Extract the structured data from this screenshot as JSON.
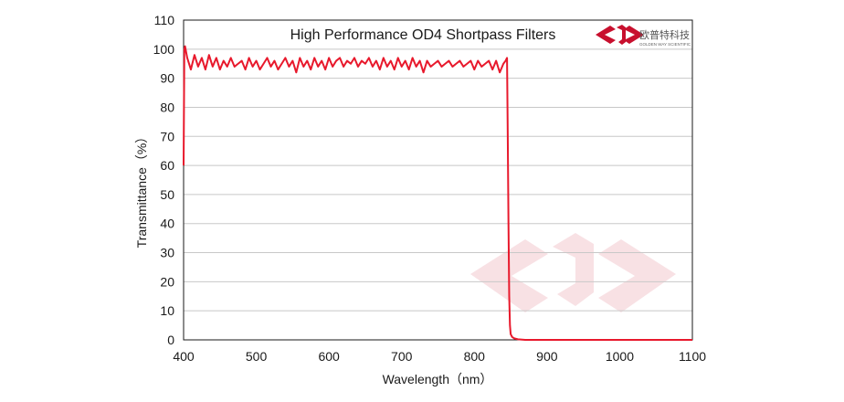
{
  "chart_data": {
    "type": "line",
    "title": "High Performance OD4 Shortpass  Filters",
    "xlabel": "Wavelength（nm）",
    "ylabel": "Transmittance（%）",
    "xlim": [
      400,
      1100
    ],
    "ylim": [
      0,
      110
    ],
    "x_ticks": [
      400,
      500,
      600,
      700,
      800,
      900,
      1000,
      1100
    ],
    "y_ticks": [
      0,
      10,
      20,
      30,
      40,
      50,
      60,
      70,
      80,
      90,
      100,
      110
    ],
    "grid": "horizontal",
    "series": [
      {
        "color": "#e8192c",
        "x": [
          400,
          401,
          402,
          405,
          410,
          415,
          420,
          425,
          430,
          435,
          440,
          445,
          450,
          455,
          460,
          465,
          470,
          475,
          480,
          485,
          490,
          495,
          500,
          505,
          510,
          515,
          520,
          525,
          530,
          535,
          540,
          545,
          550,
          555,
          560,
          565,
          570,
          575,
          580,
          585,
          590,
          595,
          600,
          605,
          610,
          615,
          620,
          625,
          630,
          635,
          640,
          645,
          650,
          655,
          660,
          665,
          670,
          675,
          680,
          685,
          690,
          695,
          700,
          705,
          710,
          715,
          720,
          725,
          730,
          735,
          740,
          745,
          750,
          755,
          760,
          765,
          770,
          775,
          780,
          785,
          790,
          795,
          800,
          805,
          810,
          815,
          820,
          825,
          830,
          835,
          840,
          843,
          845,
          846,
          847,
          848,
          849,
          850,
          852,
          855,
          860,
          870,
          900,
          1000,
          1100
        ],
        "y": [
          60,
          100,
          101,
          97,
          93,
          98,
          94,
          97,
          93,
          98,
          94,
          97,
          93,
          96,
          94,
          97,
          94,
          95,
          96,
          93,
          97,
          94,
          96,
          93,
          95,
          97,
          94,
          96,
          93,
          95,
          97,
          94,
          96,
          92,
          97,
          94,
          96,
          93,
          97,
          94,
          96,
          93,
          97,
          94,
          96,
          97,
          94,
          96,
          95,
          97,
          94,
          96,
          95,
          97,
          94,
          96,
          93,
          97,
          94,
          96,
          93,
          97,
          94,
          96,
          93,
          97,
          94,
          96,
          92,
          96,
          94,
          95,
          96,
          94,
          95,
          96,
          94,
          95,
          96,
          94,
          95,
          96,
          93,
          96,
          94,
          95,
          96,
          93,
          96,
          92,
          95,
          96,
          97,
          70,
          40,
          15,
          5,
          2,
          1,
          0.5,
          0.2,
          0,
          0,
          0,
          0
        ]
      }
    ]
  },
  "logo": {
    "cn_text": "欧普特科技",
    "en_text": "GOLDEN WAY SCIENTIFIC",
    "color": "#c8102e"
  }
}
